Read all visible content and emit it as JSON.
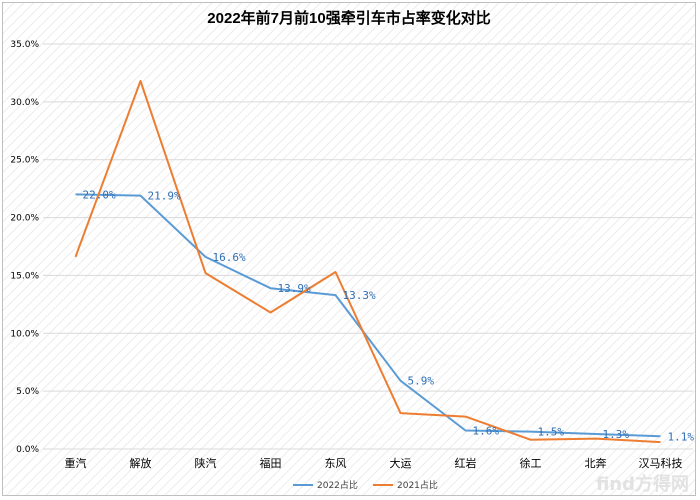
{
  "chart_data": {
    "type": "line",
    "title": "2022年前7月前10强牵引车市占率变化对比",
    "categories": [
      "重汽",
      "解放",
      "陕汽",
      "福田",
      "东风",
      "大运",
      "红岩",
      "徐工",
      "北奔",
      "汉马科技"
    ],
    "y_ticks": [
      "0.0%",
      "5.0%",
      "10.0%",
      "15.0%",
      "20.0%",
      "25.0%",
      "30.0%",
      "35.0%"
    ],
    "ylim": [
      0,
      35
    ],
    "grid": true,
    "legend_position": "bottom",
    "series": [
      {
        "name": "2022占比",
        "color": "#5b9bd5",
        "values": [
          22.0,
          21.9,
          16.6,
          13.9,
          13.3,
          5.9,
          1.6,
          1.5,
          1.3,
          1.1
        ],
        "labels": [
          "22.0%",
          "21.9%",
          "16.6%",
          "13.9%",
          "13.3%",
          "5.9%",
          "1.6%",
          "1.5%",
          "1.3%",
          "1.1%"
        ]
      },
      {
        "name": "2021占比",
        "color": "#ed7d31",
        "values": [
          16.6,
          31.8,
          15.2,
          11.8,
          15.3,
          3.1,
          2.8,
          0.8,
          0.9,
          0.6
        ]
      }
    ]
  },
  "watermark": "find方得网"
}
